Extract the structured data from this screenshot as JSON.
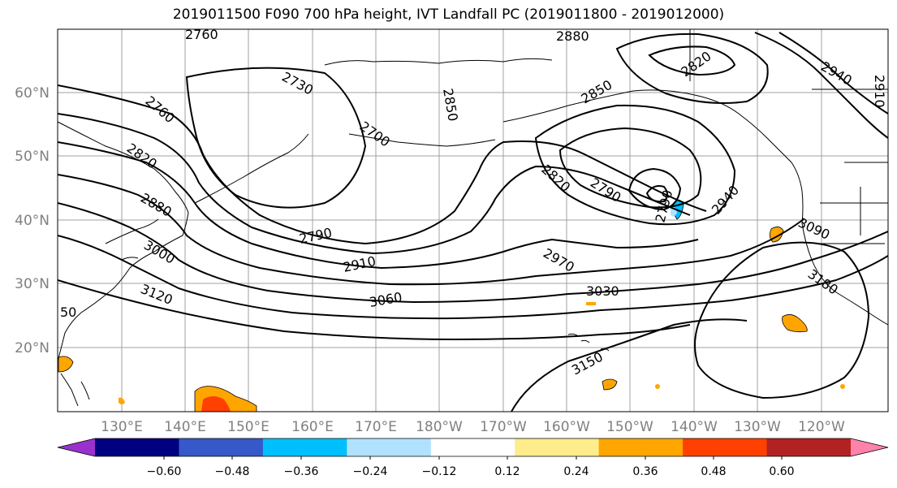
{
  "title": "2019011500 F090 700 hPa height, IVT Landfall PC (2019011800 - 2019012000)",
  "map": {
    "lat_labels": [
      "60°N",
      "50°N",
      "40°N",
      "30°N",
      "20°N"
    ],
    "lon_labels": [
      "130°E",
      "140°E",
      "150°E",
      "160°E",
      "170°E",
      "180°W",
      "170°W",
      "160°W",
      "150°W",
      "140°W",
      "130°W",
      "120°W"
    ],
    "contour_labels": [
      "2760",
      "2880",
      "2730",
      "2760",
      "2700",
      "2850",
      "2850",
      "2820",
      "2940",
      "2910",
      "2820",
      "2820",
      "2790",
      "2790",
      "2940",
      "2880",
      "2790",
      "2910",
      "3000",
      "2970",
      "3090",
      "3030",
      "3060",
      "3120",
      "50",
      "3180",
      "3150"
    ],
    "label_color": "#808080"
  },
  "colorbar": {
    "ticks": [
      "−0.60",
      "−0.48",
      "−0.36",
      "−0.24",
      "−0.12",
      "0.12",
      "0.24",
      "0.36",
      "0.48",
      "0.60"
    ],
    "colors": [
      "#9932cc",
      "#000080",
      "#3658c8",
      "#00bfff",
      "#b0e2ff",
      "#ffffff",
      "#ffec8b",
      "#ffa500",
      "#ff4000",
      "#b22222",
      "#ff82ab"
    ]
  }
}
